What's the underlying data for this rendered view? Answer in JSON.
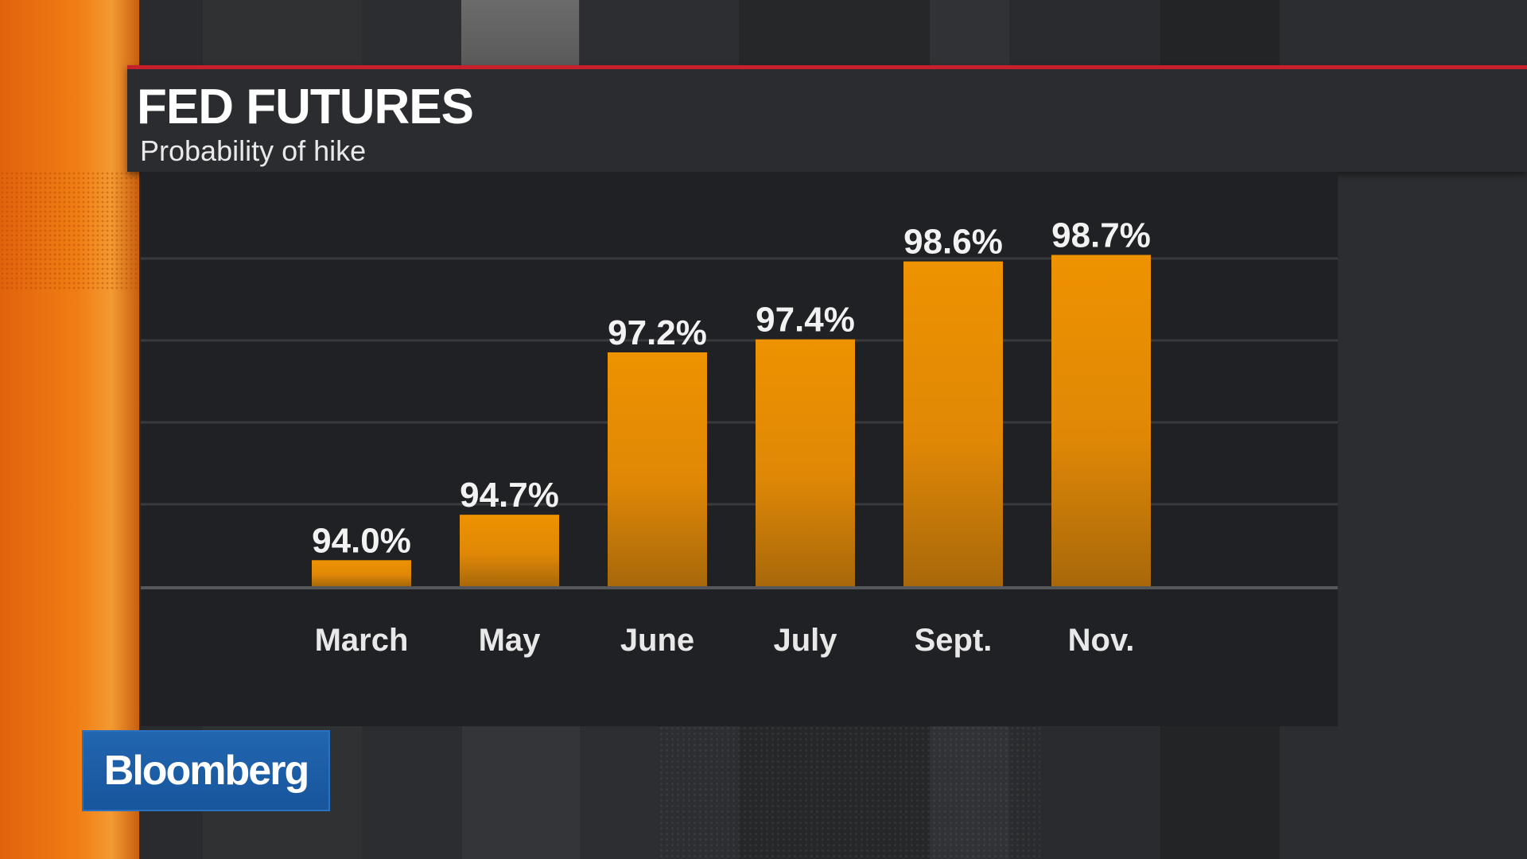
{
  "header": {
    "title": "FED FUTURES",
    "subtitle": "Probability of hike"
  },
  "brand": {
    "logo_text": "Bloomberg",
    "logo_color": "#1b5ea7"
  },
  "colors": {
    "accent_red": "#c8202a",
    "bar_top": "#ee9200",
    "bar_bottom": "#a8680a",
    "panel": "#202124"
  },
  "chart_data": {
    "type": "bar",
    "title": "FED FUTURES",
    "subtitle": "Probability of hike",
    "categories": [
      "March",
      "May",
      "June",
      "July",
      "Sept.",
      "Nov."
    ],
    "values": [
      94.0,
      94.7,
      97.2,
      97.4,
      98.6,
      98.7
    ],
    "value_labels": [
      "94.0%",
      "94.7%",
      "97.2%",
      "97.4%",
      "98.6%",
      "98.7%"
    ],
    "xlabel": "",
    "ylabel": "",
    "ylim": [
      93.6,
      99.0
    ],
    "grid": true,
    "legend": "none"
  }
}
